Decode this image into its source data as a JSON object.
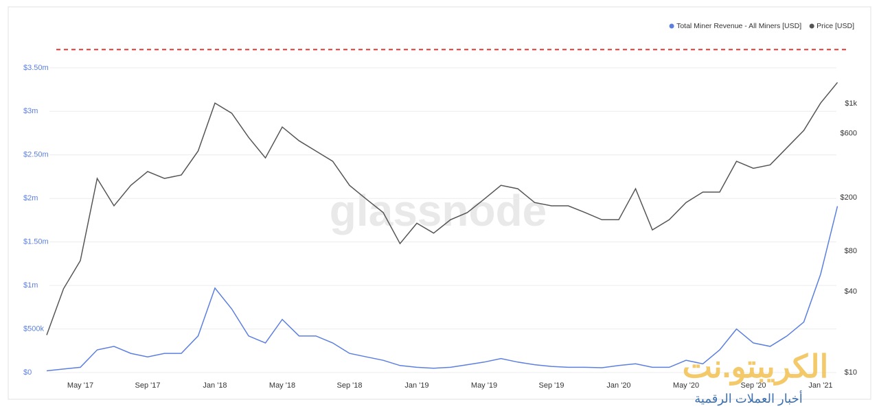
{
  "chart_data": {
    "type": "line",
    "legend_position": "top-right",
    "watermark": "glassnode",
    "logo": {
      "title": "الكريبتو.نت",
      "subtitle": "أخبار العملات الرقمية"
    },
    "x": [
      "2017-03",
      "2017-04",
      "2017-05",
      "2017-06",
      "2017-07",
      "2017-08",
      "2017-09",
      "2017-10",
      "2017-11",
      "2017-12",
      "2018-01",
      "2018-02",
      "2018-03",
      "2018-04",
      "2018-05",
      "2018-06",
      "2018-07",
      "2018-08",
      "2018-09",
      "2018-10",
      "2018-11",
      "2018-12",
      "2019-01",
      "2019-02",
      "2019-03",
      "2019-04",
      "2019-05",
      "2019-06",
      "2019-07",
      "2019-08",
      "2019-09",
      "2019-10",
      "2019-11",
      "2019-12",
      "2020-01",
      "2020-02",
      "2020-03",
      "2020-04",
      "2020-05",
      "2020-06",
      "2020-07",
      "2020-08",
      "2020-09",
      "2020-10",
      "2020-11",
      "2020-12",
      "2021-01",
      "2021-02"
    ],
    "xlim": [
      "2017-03",
      "2021-02"
    ],
    "xticks": [
      {
        "value": "2017-05",
        "label": "May '17"
      },
      {
        "value": "2017-09",
        "label": "Sep '17"
      },
      {
        "value": "2018-01",
        "label": "Jan '18"
      },
      {
        "value": "2018-05",
        "label": "May '18"
      },
      {
        "value": "2018-09",
        "label": "Sep '18"
      },
      {
        "value": "2019-01",
        "label": "Jan '19"
      },
      {
        "value": "2019-05",
        "label": "May '19"
      },
      {
        "value": "2019-09",
        "label": "Sep '19"
      },
      {
        "value": "2020-01",
        "label": "Jan '20"
      },
      {
        "value": "2020-05",
        "label": "May '20"
      },
      {
        "value": "2020-09",
        "label": "Sep '20"
      },
      {
        "value": "2021-01",
        "label": "Jan '21"
      }
    ],
    "ylim": [
      0,
      4000000
    ],
    "yticks": [
      {
        "value": 0,
        "label": "$0"
      },
      {
        "value": 500000,
        "label": "$500k"
      },
      {
        "value": 1000000,
        "label": "$1m"
      },
      {
        "value": 1500000,
        "label": "$1.50m"
      },
      {
        "value": 2000000,
        "label": "$2m"
      },
      {
        "value": 2500000,
        "label": "$2.50m"
      },
      {
        "value": 3000000,
        "label": "$3m"
      },
      {
        "value": 3500000,
        "label": "$3.50m"
      }
    ],
    "y2lim": [
      10,
      3900
    ],
    "y2_log": true,
    "y2ticks": [
      {
        "value": 10,
        "label": "$10"
      },
      {
        "value": 40,
        "label": "$40"
      },
      {
        "value": 80,
        "label": "$80"
      },
      {
        "value": 200,
        "label": "$200"
      },
      {
        "value": 600,
        "label": "$600"
      },
      {
        "value": 1000,
        "label": "$1k"
      }
    ],
    "grid": true,
    "reference_line": {
      "value": 3710000,
      "color": "#e53935"
    },
    "series": [
      {
        "name": "Total Miner Revenue - All Miners [USD]",
        "color": "#5b7fe0",
        "values": [
          20000,
          40000,
          60000,
          260000,
          300000,
          220000,
          180000,
          220000,
          220000,
          420000,
          970000,
          730000,
          420000,
          340000,
          610000,
          420000,
          420000,
          340000,
          220000,
          180000,
          140000,
          80000,
          60000,
          50000,
          60000,
          90000,
          120000,
          160000,
          120000,
          90000,
          70000,
          60000,
          60000,
          55000,
          80000,
          100000,
          60000,
          60000,
          140000,
          100000,
          260000,
          500000,
          340000,
          300000,
          420000,
          580000,
          1130000,
          1910000
        ]
      },
      {
        "name": "Price [USD]",
        "color": "#555555",
        "axis": "y2",
        "values": [
          19,
          42,
          68,
          278,
          174,
          247,
          313,
          278,
          295,
          445,
          1012,
          849,
          562,
          395,
          671,
          530,
          445,
          373,
          247,
          195,
          155,
          91,
          129,
          109,
          137,
          155,
          195,
          247,
          233,
          184,
          174,
          174,
          155,
          137,
          137,
          233,
          115,
          137,
          184,
          220,
          220,
          373,
          331,
          351,
          471,
          632,
          1012,
          1439
        ]
      }
    ]
  }
}
